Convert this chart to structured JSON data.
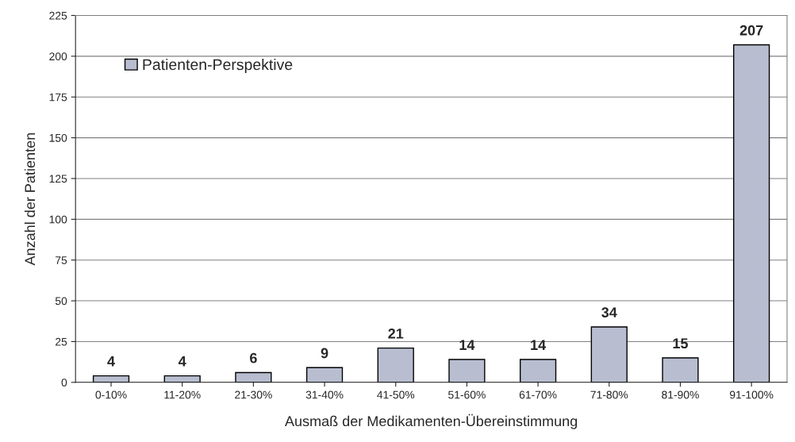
{
  "chart_data": {
    "type": "bar",
    "xlabel": "Ausmaß der Medikamenten-Übereinstimmung",
    "ylabel": "Anzahl der Patienten",
    "categories": [
      "0-10%",
      "11-20%",
      "21-30%",
      "31-40%",
      "41-50%",
      "51-60%",
      "61-70%",
      "71-80%",
      "81-90%",
      "91-100%"
    ],
    "series": [
      {
        "name": "Patienten-Perspektive",
        "color": "#b8bed0",
        "values": [
          4,
          4,
          6,
          9,
          21,
          14,
          14,
          34,
          15,
          207
        ]
      }
    ],
    "ylim": [
      0,
      225
    ],
    "yticks": [
      0,
      25,
      50,
      75,
      100,
      125,
      150,
      175,
      200,
      225
    ],
    "grid": "y",
    "legend": "top left",
    "data_labels": true
  }
}
